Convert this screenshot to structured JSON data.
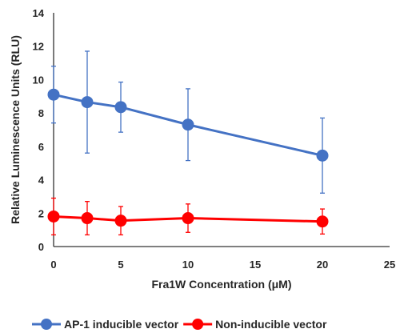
{
  "chart_data": {
    "type": "line",
    "title": "",
    "xlabel": "Fra1W Concentration (μM)",
    "ylabel": "Relative Luminescence Units (RLU)",
    "xlim": [
      0,
      25
    ],
    "ylim": [
      0,
      14
    ],
    "xticks": [
      "0",
      "5",
      "10",
      "15",
      "20",
      "25"
    ],
    "yticks": [
      "0",
      "2",
      "4",
      "6",
      "8",
      "10",
      "12",
      "14"
    ],
    "grid": false,
    "legend_position": "bottom",
    "series": [
      {
        "name": "AP-1 inducible vector",
        "color": "#4472c4",
        "x": [
          0,
          2.5,
          5,
          10,
          20
        ],
        "y": [
          9.1,
          8.65,
          8.35,
          7.3,
          5.45
        ],
        "error": [
          1.7,
          3.05,
          1.5,
          2.15,
          2.25
        ]
      },
      {
        "name": "Non-inducible vector",
        "color": "#ff0000",
        "x": [
          0,
          2.5,
          5,
          10,
          20
        ],
        "y": [
          1.8,
          1.7,
          1.55,
          1.7,
          1.5
        ],
        "error": [
          1.1,
          1.0,
          0.85,
          0.85,
          0.75
        ]
      }
    ]
  }
}
